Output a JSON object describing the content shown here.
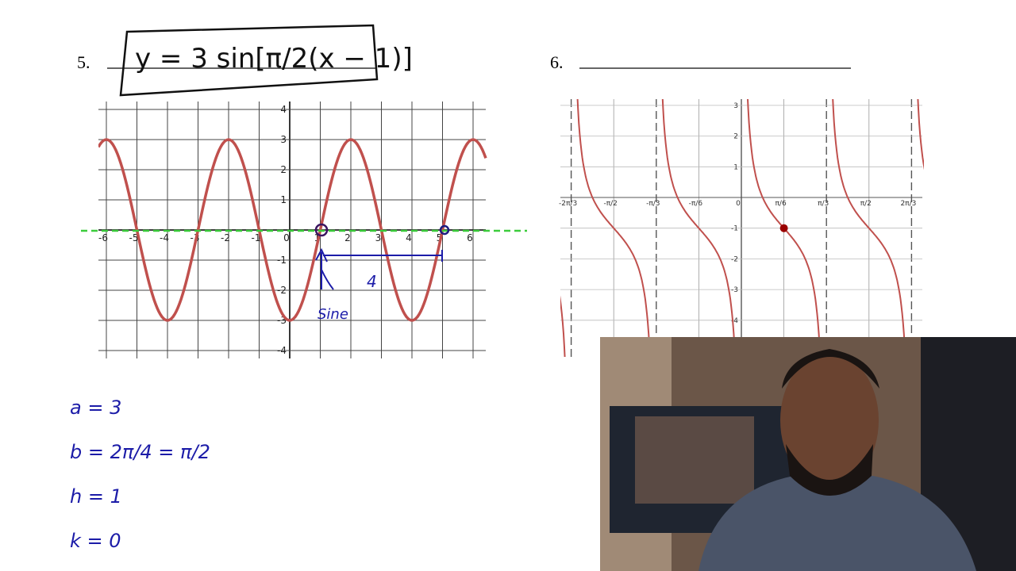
{
  "problems": [
    {
      "number": "5.",
      "equation": "y = 3 sin[π/2(x − 1)]",
      "graph": {
        "xticks": [
          -6,
          -5,
          -4,
          -3,
          -2,
          -1,
          0,
          1,
          2,
          3,
          4,
          5,
          6
        ],
        "yticks": [
          -4,
          -3,
          -2,
          -1,
          1,
          2,
          3,
          4
        ]
      },
      "notes": {
        "period": "4",
        "label": "Sine"
      },
      "work": [
        "a = 3",
        "b = 2π/4 = π/2",
        "h = 1",
        "k = 0"
      ]
    },
    {
      "number": "6.",
      "graph": {
        "xticks": [
          "-2π/3",
          "-π/2",
          "-π/3",
          "-π/6",
          "0",
          "π/6",
          "π/3",
          "π/2",
          "2π/3"
        ],
        "yticks": [
          3,
          2,
          1,
          -1,
          -2,
          -3,
          -4
        ]
      }
    }
  ]
}
